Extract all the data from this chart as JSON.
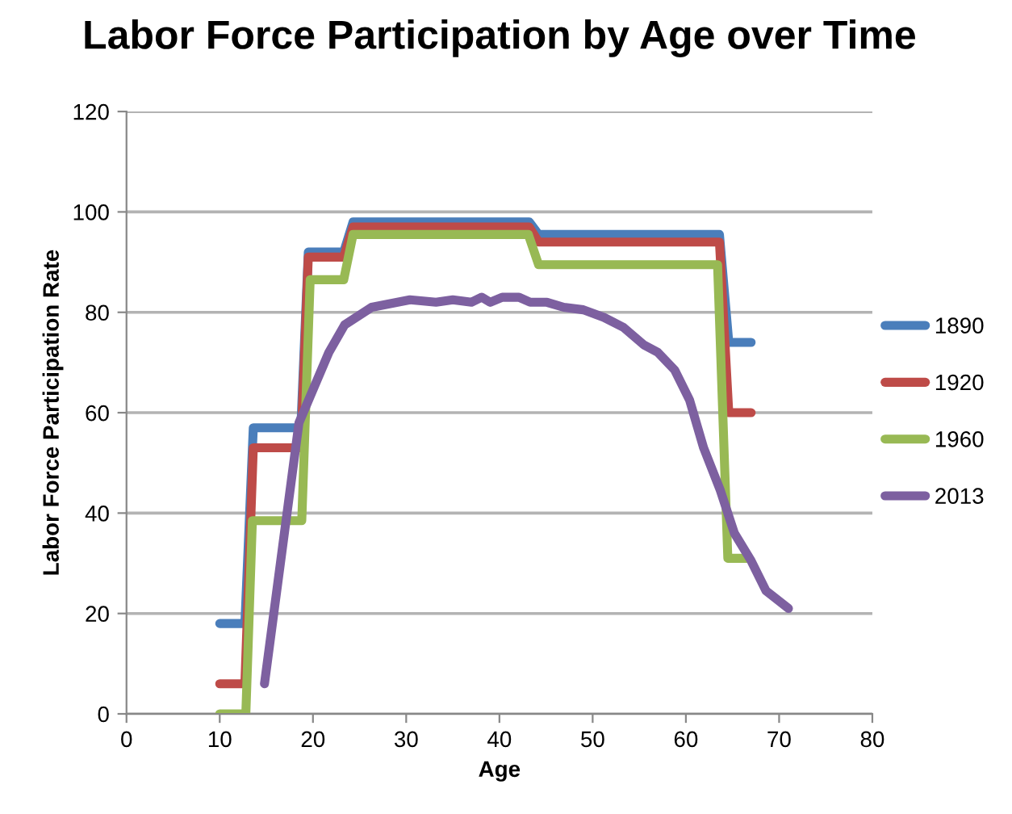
{
  "chart_data": {
    "type": "line",
    "title": "Labor Force Participation by Age over Time",
    "xlabel": "Age",
    "ylabel": "Labor Force Participation Rate",
    "xlim": [
      0,
      80
    ],
    "xticks": [
      0,
      10,
      20,
      30,
      40,
      50,
      60,
      70,
      80
    ],
    "ylim": [
      0,
      120
    ],
    "yticks": [
      0,
      20,
      40,
      60,
      80,
      100,
      120
    ],
    "grid": "y",
    "legend": "right",
    "marker": "none",
    "line_style": "solid",
    "series": [
      {
        "name": "1890",
        "color": "#4a7ebb",
        "x": [
          10,
          12.7,
          13.6,
          18.7,
          19.5,
          23.3,
          24.3,
          43.2,
          44.2,
          63.6,
          64.6,
          67
        ],
        "values": [
          18,
          18,
          57,
          57,
          92,
          92,
          98,
          98,
          95.5,
          95.5,
          74,
          74
        ]
      },
      {
        "name": "1920",
        "color": "#be4b48",
        "x": [
          10,
          12.7,
          13.6,
          18.7,
          19.5,
          23.3,
          24.3,
          43.2,
          44.2,
          63.6,
          64.6,
          67
        ],
        "values": [
          6,
          6,
          53,
          53,
          91,
          91,
          97,
          97,
          94,
          94,
          60,
          60
        ]
      },
      {
        "name": "1960",
        "color": "#98b954",
        "x": [
          10,
          12.8,
          13.5,
          18.8,
          19.7,
          23.3,
          24.3,
          43.1,
          44.2,
          63.4,
          64.5,
          66.7
        ],
        "values": [
          0,
          0,
          38.5,
          38.5,
          86.5,
          86.5,
          95.5,
          95.5,
          89.5,
          89.5,
          31,
          31
        ]
      },
      {
        "name": "2013",
        "color": "#7d60a0",
        "x": [
          14.8,
          18.5,
          21.7,
          23.4,
          26.3,
          30.4,
          33.2,
          35,
          37,
          38.1,
          39,
          40.3,
          42.1,
          43.3,
          45.1,
          46.9,
          49,
          51.2,
          53.3,
          55.5,
          57,
          58.8,
          60.4,
          61.9,
          63.7,
          65.2,
          67,
          68.6,
          71
        ],
        "values": [
          6,
          58,
          72,
          77.5,
          81,
          82.5,
          82,
          82.5,
          82,
          83,
          82,
          83,
          83,
          82,
          82,
          81,
          80.5,
          79,
          77,
          73.5,
          72,
          68.5,
          62.5,
          53,
          44.5,
          36,
          30.5,
          24.5,
          21
        ]
      }
    ]
  }
}
